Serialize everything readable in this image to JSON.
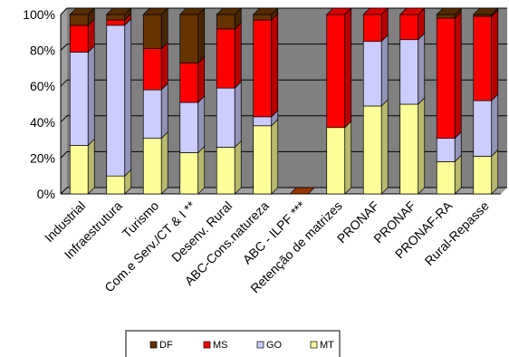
{
  "chart_data": {
    "type": "bar",
    "stacked": true,
    "percent": true,
    "categories": [
      "Industrial",
      "Infraestrutura",
      "Turismo",
      "Com.e Serv./CT & I **",
      "Desenv. Rural",
      "ABC-Cons.natureza",
      "ABC - ILPF ***",
      "Retenção de matrizes",
      "PRONAF",
      "PRONAF",
      "PRONAF-RA",
      "Rural-Repasse"
    ],
    "series": [
      {
        "name": "MT",
        "color": "#ffff99",
        "values": [
          27,
          10,
          31,
          23,
          26,
          38,
          0,
          37,
          49,
          50,
          18,
          21
        ]
      },
      {
        "name": "GO",
        "color": "#ccccff",
        "values": [
          52,
          84,
          27,
          28,
          33,
          5,
          0,
          0,
          36,
          36,
          13,
          31
        ]
      },
      {
        "name": "MS",
        "color": "#ff0000",
        "values": [
          15,
          3,
          23,
          22,
          33,
          54,
          0,
          63,
          15,
          14,
          67,
          47
        ]
      },
      {
        "name": "DF",
        "color": "#663300",
        "values": [
          6,
          3,
          19,
          27,
          8,
          3,
          0,
          0,
          0,
          0,
          2,
          1
        ]
      }
    ],
    "ylim": [
      0,
      100
    ],
    "yticks": [
      "0%",
      "20%",
      "40%",
      "60%",
      "80%",
      "100%"
    ],
    "title": "",
    "xlabel": "",
    "ylabel": "",
    "legend_position": "bottom",
    "legend_order": [
      "DF",
      "MS",
      "GO",
      "MT"
    ],
    "plot_background": "#808080",
    "grid": true
  }
}
